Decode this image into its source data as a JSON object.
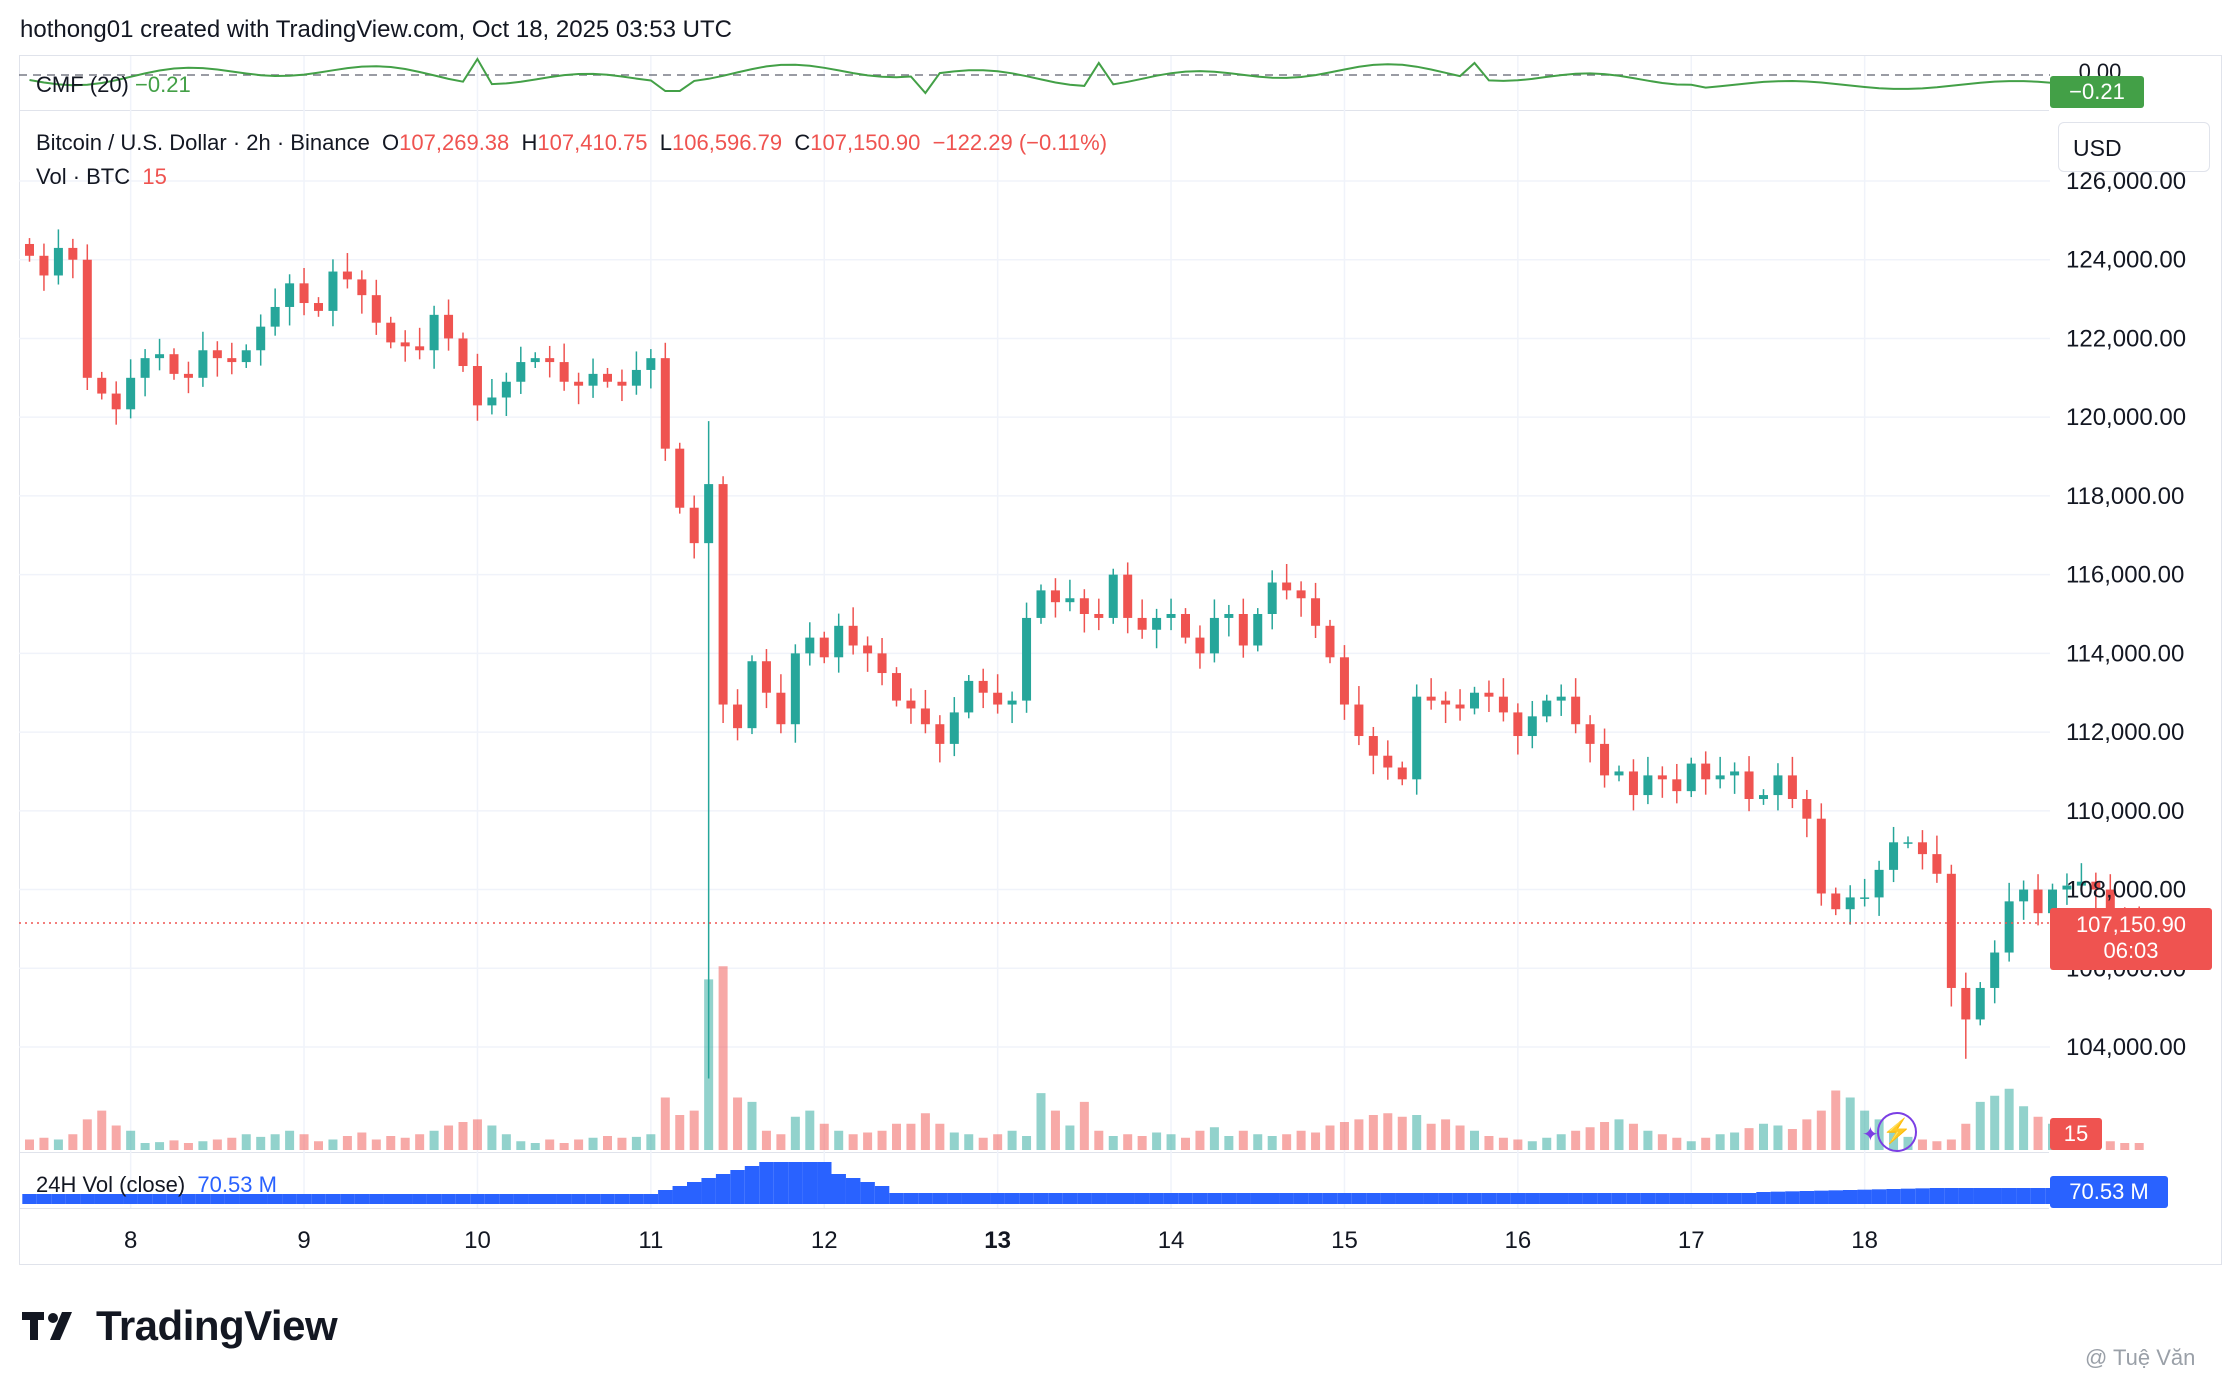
{
  "header": {
    "text": "hothong01 created with TradingView.com, Oct 18, 2025 03:53 UTC"
  },
  "legend": {
    "symbol": "Bitcoin / U.S. Dollar · 2h · Binance",
    "o_label": "O",
    "o_value": "107,269.38",
    "h_label": "H",
    "h_value": "107,410.75",
    "l_label": "L",
    "l_value": "106,596.79",
    "c_label": "C",
    "c_value": "107,150.90",
    "change": "−122.29 (−0.11%)",
    "vol_label": "Vol · BTC",
    "vol_value": "15",
    "cmf_label": "CMF (20)",
    "cmf_value": "−0.21",
    "vol24_label": "24H Vol (close)",
    "vol24_value": "70.53 M"
  },
  "currency_button": "USD",
  "badges": {
    "cmf_zero": "0.00",
    "cmf_last": "−0.21",
    "price_last": "107,150.90",
    "countdown": "06:03",
    "vol_last": "15",
    "vol24_last": "70.53 M"
  },
  "logo_text": "TradingView",
  "watermark": "@ Tuệ Văn",
  "colors": {
    "up": "#26a69a",
    "down": "#ef5350",
    "up_vol": "#26a69a80",
    "down_vol": "#ef535080",
    "cmf": "#43a047",
    "vol24": "#2962ff",
    "grid": "#f0f3fa",
    "axis_text": "#131722"
  },
  "chart_data": [
    {
      "type": "candlestick",
      "title": "Bitcoin / U.S. Dollar · 2h · Binance",
      "y_unit": "USD",
      "ylim": [
        101000,
        126800
      ],
      "y_ticks": [
        104000,
        106000,
        108000,
        110000,
        112000,
        114000,
        116000,
        118000,
        120000,
        122000,
        124000,
        126000
      ],
      "x_tick_labels": [
        "8",
        "9",
        "10",
        "11",
        "12",
        "13",
        "14",
        "15",
        "16",
        "17",
        "18"
      ],
      "x_tick_index": [
        7,
        19,
        31,
        43,
        55,
        67,
        79,
        91,
        103,
        115,
        127
      ],
      "bold_tick": "13",
      "grid": true,
      "last_price": 107150.9,
      "closes": [
        124100,
        123600,
        124300,
        124000,
        121000,
        120600,
        120200,
        121000,
        121500,
        121600,
        121100,
        121000,
        121700,
        121500,
        121400,
        121700,
        122300,
        122800,
        123400,
        122900,
        122700,
        123700,
        123500,
        123100,
        122400,
        121900,
        121800,
        121700,
        122600,
        122000,
        121300,
        120300,
        120500,
        120900,
        121400,
        121500,
        121400,
        120900,
        120800,
        121100,
        120900,
        120800,
        121200,
        121500,
        119200,
        117700,
        116800,
        118300,
        112700,
        112100,
        113800,
        113000,
        112200,
        114000,
        114400,
        113900,
        114700,
        114200,
        114000,
        113500,
        112800,
        112600,
        112200,
        111700,
        112500,
        113300,
        113000,
        112700,
        112800,
        114900,
        115600,
        115300,
        115400,
        115000,
        114900,
        116000,
        114900,
        114600,
        114900,
        115000,
        114400,
        114000,
        114900,
        115000,
        114200,
        115000,
        115800,
        115600,
        115400,
        114700,
        113900,
        112700,
        111900,
        111400,
        111100,
        110800,
        112900,
        112800,
        112700,
        112600,
        113000,
        112900,
        112500,
        111900,
        112400,
        112800,
        112900,
        112200,
        111700,
        110900,
        111000,
        110400,
        110900,
        110800,
        110500,
        111200,
        110800,
        110900,
        111000,
        110300,
        110400,
        110900,
        110300,
        109800,
        107900,
        107500,
        107800,
        107800,
        108500,
        109200,
        109200,
        108900,
        108400,
        105500,
        104700,
        105500,
        106400,
        107700,
        108000,
        107400,
        108000,
        108100,
        108200,
        108000,
        107400,
        107260,
        107150.9
      ]
    },
    {
      "type": "bar",
      "title": "Vol · BTC",
      "last_value": 15,
      "relative_values": [
        0.12,
        0.14,
        0.12,
        0.18,
        0.35,
        0.45,
        0.28,
        0.22,
        0.08,
        0.09,
        0.11,
        0.08,
        0.1,
        0.12,
        0.14,
        0.18,
        0.15,
        0.18,
        0.22,
        0.18,
        0.1,
        0.12,
        0.16,
        0.2,
        0.12,
        0.16,
        0.14,
        0.18,
        0.22,
        0.28,
        0.32,
        0.35,
        0.28,
        0.18,
        0.1,
        0.08,
        0.12,
        0.08,
        0.12,
        0.14,
        0.16,
        0.14,
        0.15,
        0.18,
        0.6,
        0.4,
        0.45,
        1.95,
        2.1,
        0.6,
        0.55,
        0.22,
        0.18,
        0.38,
        0.45,
        0.3,
        0.22,
        0.18,
        0.2,
        0.22,
        0.3,
        0.3,
        0.42,
        0.3,
        0.2,
        0.18,
        0.14,
        0.18,
        0.22,
        0.16,
        0.65,
        0.45,
        0.28,
        0.55,
        0.22,
        0.16,
        0.18,
        0.16,
        0.2,
        0.18,
        0.14,
        0.22,
        0.26,
        0.16,
        0.22,
        0.18,
        0.16,
        0.18,
        0.22,
        0.2,
        0.28,
        0.32,
        0.35,
        0.4,
        0.42,
        0.38,
        0.4,
        0.3,
        0.35,
        0.28,
        0.22,
        0.16,
        0.14,
        0.12,
        0.1,
        0.14,
        0.18,
        0.22,
        0.26,
        0.32,
        0.35,
        0.3,
        0.22,
        0.18,
        0.14,
        0.1,
        0.14,
        0.18,
        0.2,
        0.25,
        0.3,
        0.28,
        0.24,
        0.35,
        0.45,
        0.68,
        0.6,
        0.45,
        0.35,
        0.2,
        0.15,
        0.12,
        0.1,
        0.12,
        0.3,
        0.55,
        0.62,
        0.7,
        0.5,
        0.38,
        0.3,
        0.22,
        0.16,
        0.12,
        0.1,
        0.08,
        0.08
      ]
    },
    {
      "type": "line",
      "title": "CMF (20)",
      "last_value": -0.21,
      "zero_line": 0.0
    },
    {
      "type": "histogram",
      "title": "24H Vol (close)",
      "last_value": "70.53 M"
    }
  ]
}
